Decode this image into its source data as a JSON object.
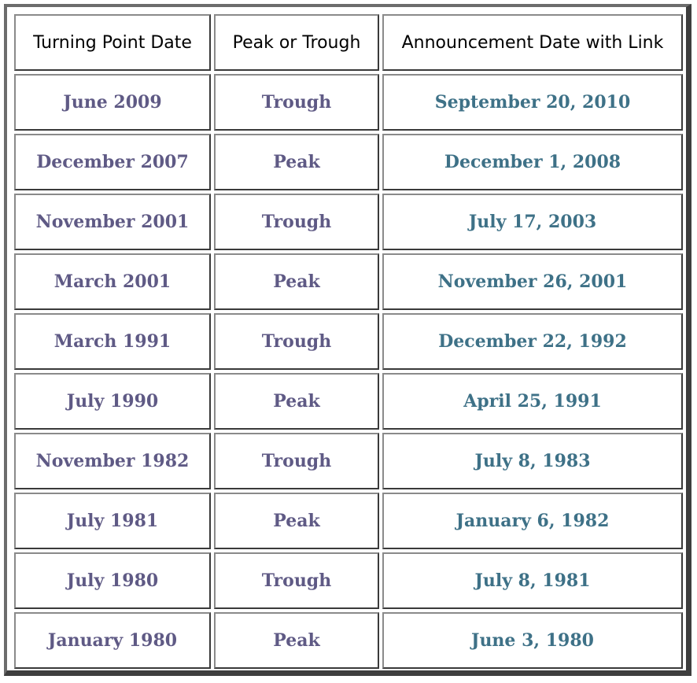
{
  "table": {
    "headers": [
      "Turning Point Date",
      "Peak or Trough",
      "Announcement Date with Link"
    ],
    "rows": [
      {
        "turning_point": "June 2009",
        "type": "Trough",
        "announcement": "September 20, 2010"
      },
      {
        "turning_point": "December 2007",
        "type": "Peak",
        "announcement": "December 1, 2008"
      },
      {
        "turning_point": "November 2001",
        "type": "Trough",
        "announcement": "July 17, 2003"
      },
      {
        "turning_point": "March 2001",
        "type": "Peak",
        "announcement": "November 26, 2001"
      },
      {
        "turning_point": "March 1991",
        "type": "Trough",
        "announcement": "December 22, 1992"
      },
      {
        "turning_point": "July 1990",
        "type": "Peak",
        "announcement": "April 25, 1991"
      },
      {
        "turning_point": "November 1982",
        "type": "Trough",
        "announcement": "July 8, 1983"
      },
      {
        "turning_point": "July 1981",
        "type": "Peak",
        "announcement": "January 6, 1982"
      },
      {
        "turning_point": "July 1980",
        "type": "Trough",
        "announcement": "July 8, 1981"
      },
      {
        "turning_point": "January 1980",
        "type": "Peak",
        "announcement": "June 3, 1980"
      }
    ]
  },
  "colors": {
    "label_text": "#5f5a85",
    "link_text": "#3e7187",
    "header_text": "#000000",
    "frame": "#3e3e3e"
  }
}
